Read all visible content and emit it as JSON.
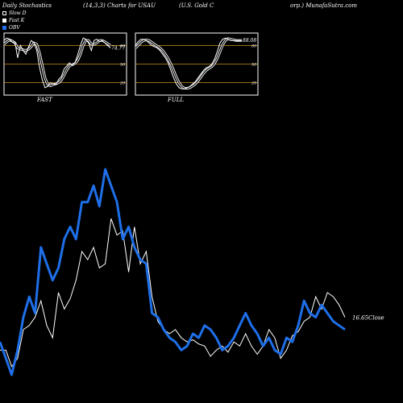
{
  "header": {
    "left": "Daily Stochastics",
    "center": "(14,3,3) Charts for USAU",
    "right_a": "(U.S. Gold C",
    "right_b": "orp.) MunafaSutra.com"
  },
  "legend": [
    {
      "label": "Slow D",
      "color": "#ffffff"
    },
    {
      "label": "Fast K",
      "color": "#ffffff"
    },
    {
      "label": "OBV",
      "color": "#1e6fe8"
    }
  ],
  "colors": {
    "obv": "#1e6fe8",
    "price": "#ffffff",
    "grid": "#c8901e",
    "background": "#000000"
  },
  "chart_data": [
    {
      "type": "line",
      "title": "FAST",
      "ylim": [
        0,
        100
      ],
      "ticks": [
        "80",
        "50",
        "20"
      ],
      "last_value_label": "74.77",
      "series": [
        {
          "name": "Fast K",
          "values": [
            88,
            92,
            90,
            85,
            86,
            60,
            80,
            72,
            66,
            78,
            88,
            84,
            72,
            45,
            25,
            12,
            14,
            20,
            18,
            17,
            25,
            30,
            42,
            47,
            52,
            48,
            52,
            65,
            80,
            92,
            90,
            84,
            72,
            88,
            90,
            86,
            88,
            84,
            80,
            76
          ]
        },
        {
          "name": "Slow D",
          "values": [
            82,
            86,
            89,
            87,
            84,
            76,
            74,
            73,
            72,
            74,
            78,
            84,
            82,
            68,
            48,
            28,
            17,
            15,
            17,
            18,
            20,
            24,
            32,
            40,
            47,
            49,
            51,
            56,
            66,
            80,
            88,
            88,
            82,
            82,
            84,
            88,
            88,
            86,
            83,
            80
          ]
        }
      ]
    },
    {
      "type": "line",
      "title": "FULL",
      "ylim": [
        0,
        100
      ],
      "ticks": [
        "80",
        "50",
        "20"
      ],
      "last_value_label": "88.08",
      "series": [
        {
          "name": "Fast K",
          "values": [
            80,
            86,
            90,
            90,
            88,
            84,
            80,
            78,
            76,
            72,
            66,
            60,
            52,
            40,
            28,
            18,
            12,
            10,
            10,
            12,
            14,
            18,
            22,
            28,
            34,
            40,
            44,
            46,
            50,
            58,
            70,
            84,
            90,
            92,
            90,
            88,
            88,
            88,
            88,
            88
          ]
        },
        {
          "name": "Slow D",
          "values": [
            76,
            80,
            85,
            88,
            89,
            88,
            85,
            82,
            79,
            76,
            72,
            66,
            59,
            50,
            40,
            29,
            20,
            14,
            11,
            11,
            12,
            15,
            18,
            23,
            29,
            35,
            40,
            43,
            46,
            51,
            59,
            70,
            81,
            88,
            91,
            90,
            89,
            88,
            88,
            88
          ]
        }
      ]
    },
    {
      "type": "line",
      "title": "",
      "ylim": [
        0,
        100
      ],
      "last_value_label": "16.65",
      "last_value_suffix": "Close",
      "series": [
        {
          "name": "Close",
          "values": [
            12,
            12,
            4,
            8,
            22,
            24,
            28,
            36,
            24,
            18,
            40,
            32,
            37,
            46,
            60,
            56,
            62,
            52,
            54,
            76,
            68,
            70,
            50,
            72,
            54,
            60,
            38,
            26,
            22,
            20,
            22,
            18,
            16,
            17,
            15,
            14,
            9,
            12,
            14,
            11,
            16,
            14,
            20,
            14,
            10,
            14,
            22,
            18,
            8,
            12,
            19,
            21,
            26,
            28,
            38,
            32,
            40,
            38,
            34,
            28
          ]
        },
        {
          "name": "OBV",
          "values": [
            16,
            8,
            0,
            12,
            28,
            38,
            30,
            62,
            54,
            46,
            52,
            66,
            72,
            66,
            84,
            84,
            92,
            82,
            100,
            92,
            84,
            66,
            72,
            62,
            56,
            54,
            30,
            28,
            22,
            18,
            16,
            12,
            14,
            20,
            18,
            24,
            22,
            18,
            12,
            14,
            18,
            24,
            30,
            24,
            20,
            14,
            18,
            12,
            10,
            18,
            16,
            24,
            36,
            30,
            28,
            34,
            30,
            26,
            24,
            22
          ]
        }
      ]
    }
  ]
}
